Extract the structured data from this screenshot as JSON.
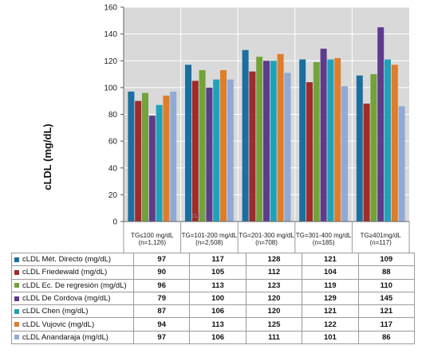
{
  "chart_data": {
    "type": "bar",
    "ylabel": "cLDL  (mg/dL)",
    "ylim": [
      0,
      160
    ],
    "yticks": [
      "0",
      "20",
      "40",
      "60",
      "80",
      "100",
      "120",
      "140",
      "160"
    ],
    "watermark": "cLDL",
    "categories": [
      {
        "label": "TG≤100 mg/dL",
        "n": "(n=1,126)"
      },
      {
        "label": "TG=101-200 mg/dL",
        "n": "(n=2,508)"
      },
      {
        "label": "TG=201-300 mg/dL",
        "n": "(n=708)"
      },
      {
        "label": "TG=301-400 mg/dL",
        "n": "(n=185)"
      },
      {
        "label": "TG≥401mg/dL",
        "n": "(n=117)"
      }
    ],
    "series": [
      {
        "prefix": "cLDL",
        "name": "Mét. Directo (mg/dL)",
        "color": "#1a6fa0",
        "values": [
          97,
          117,
          128,
          121,
          109
        ]
      },
      {
        "prefix": "cLDL",
        "name": "Friedewald (mg/dL)",
        "color": "#a12a2a",
        "values": [
          90,
          105,
          112,
          104,
          88
        ]
      },
      {
        "prefix": "cLDL",
        "name": "Ec. De regresión (mg/dL)",
        "color": "#72a33a",
        "values": [
          96,
          113,
          123,
          119,
          110
        ]
      },
      {
        "prefix": "cLDL",
        "name": " De Cordova (mg/dL)",
        "color": "#5e3b8c",
        "values": [
          79,
          100,
          120,
          129,
          145
        ]
      },
      {
        "prefix": "cLDL",
        "name": "Chen (mg/dL)",
        "color": "#1ea2ba",
        "values": [
          87,
          106,
          120,
          121,
          121
        ]
      },
      {
        "prefix": "cLDL",
        "name": "Vujovic (mg/dL)",
        "color": "#e07d2a",
        "values": [
          94,
          113,
          125,
          122,
          117
        ]
      },
      {
        "prefix": "cLDL",
        "name": "Anandaraja (mg/dL)",
        "color": "#90aad6",
        "values": [
          97,
          106,
          111,
          101,
          86
        ]
      }
    ]
  }
}
